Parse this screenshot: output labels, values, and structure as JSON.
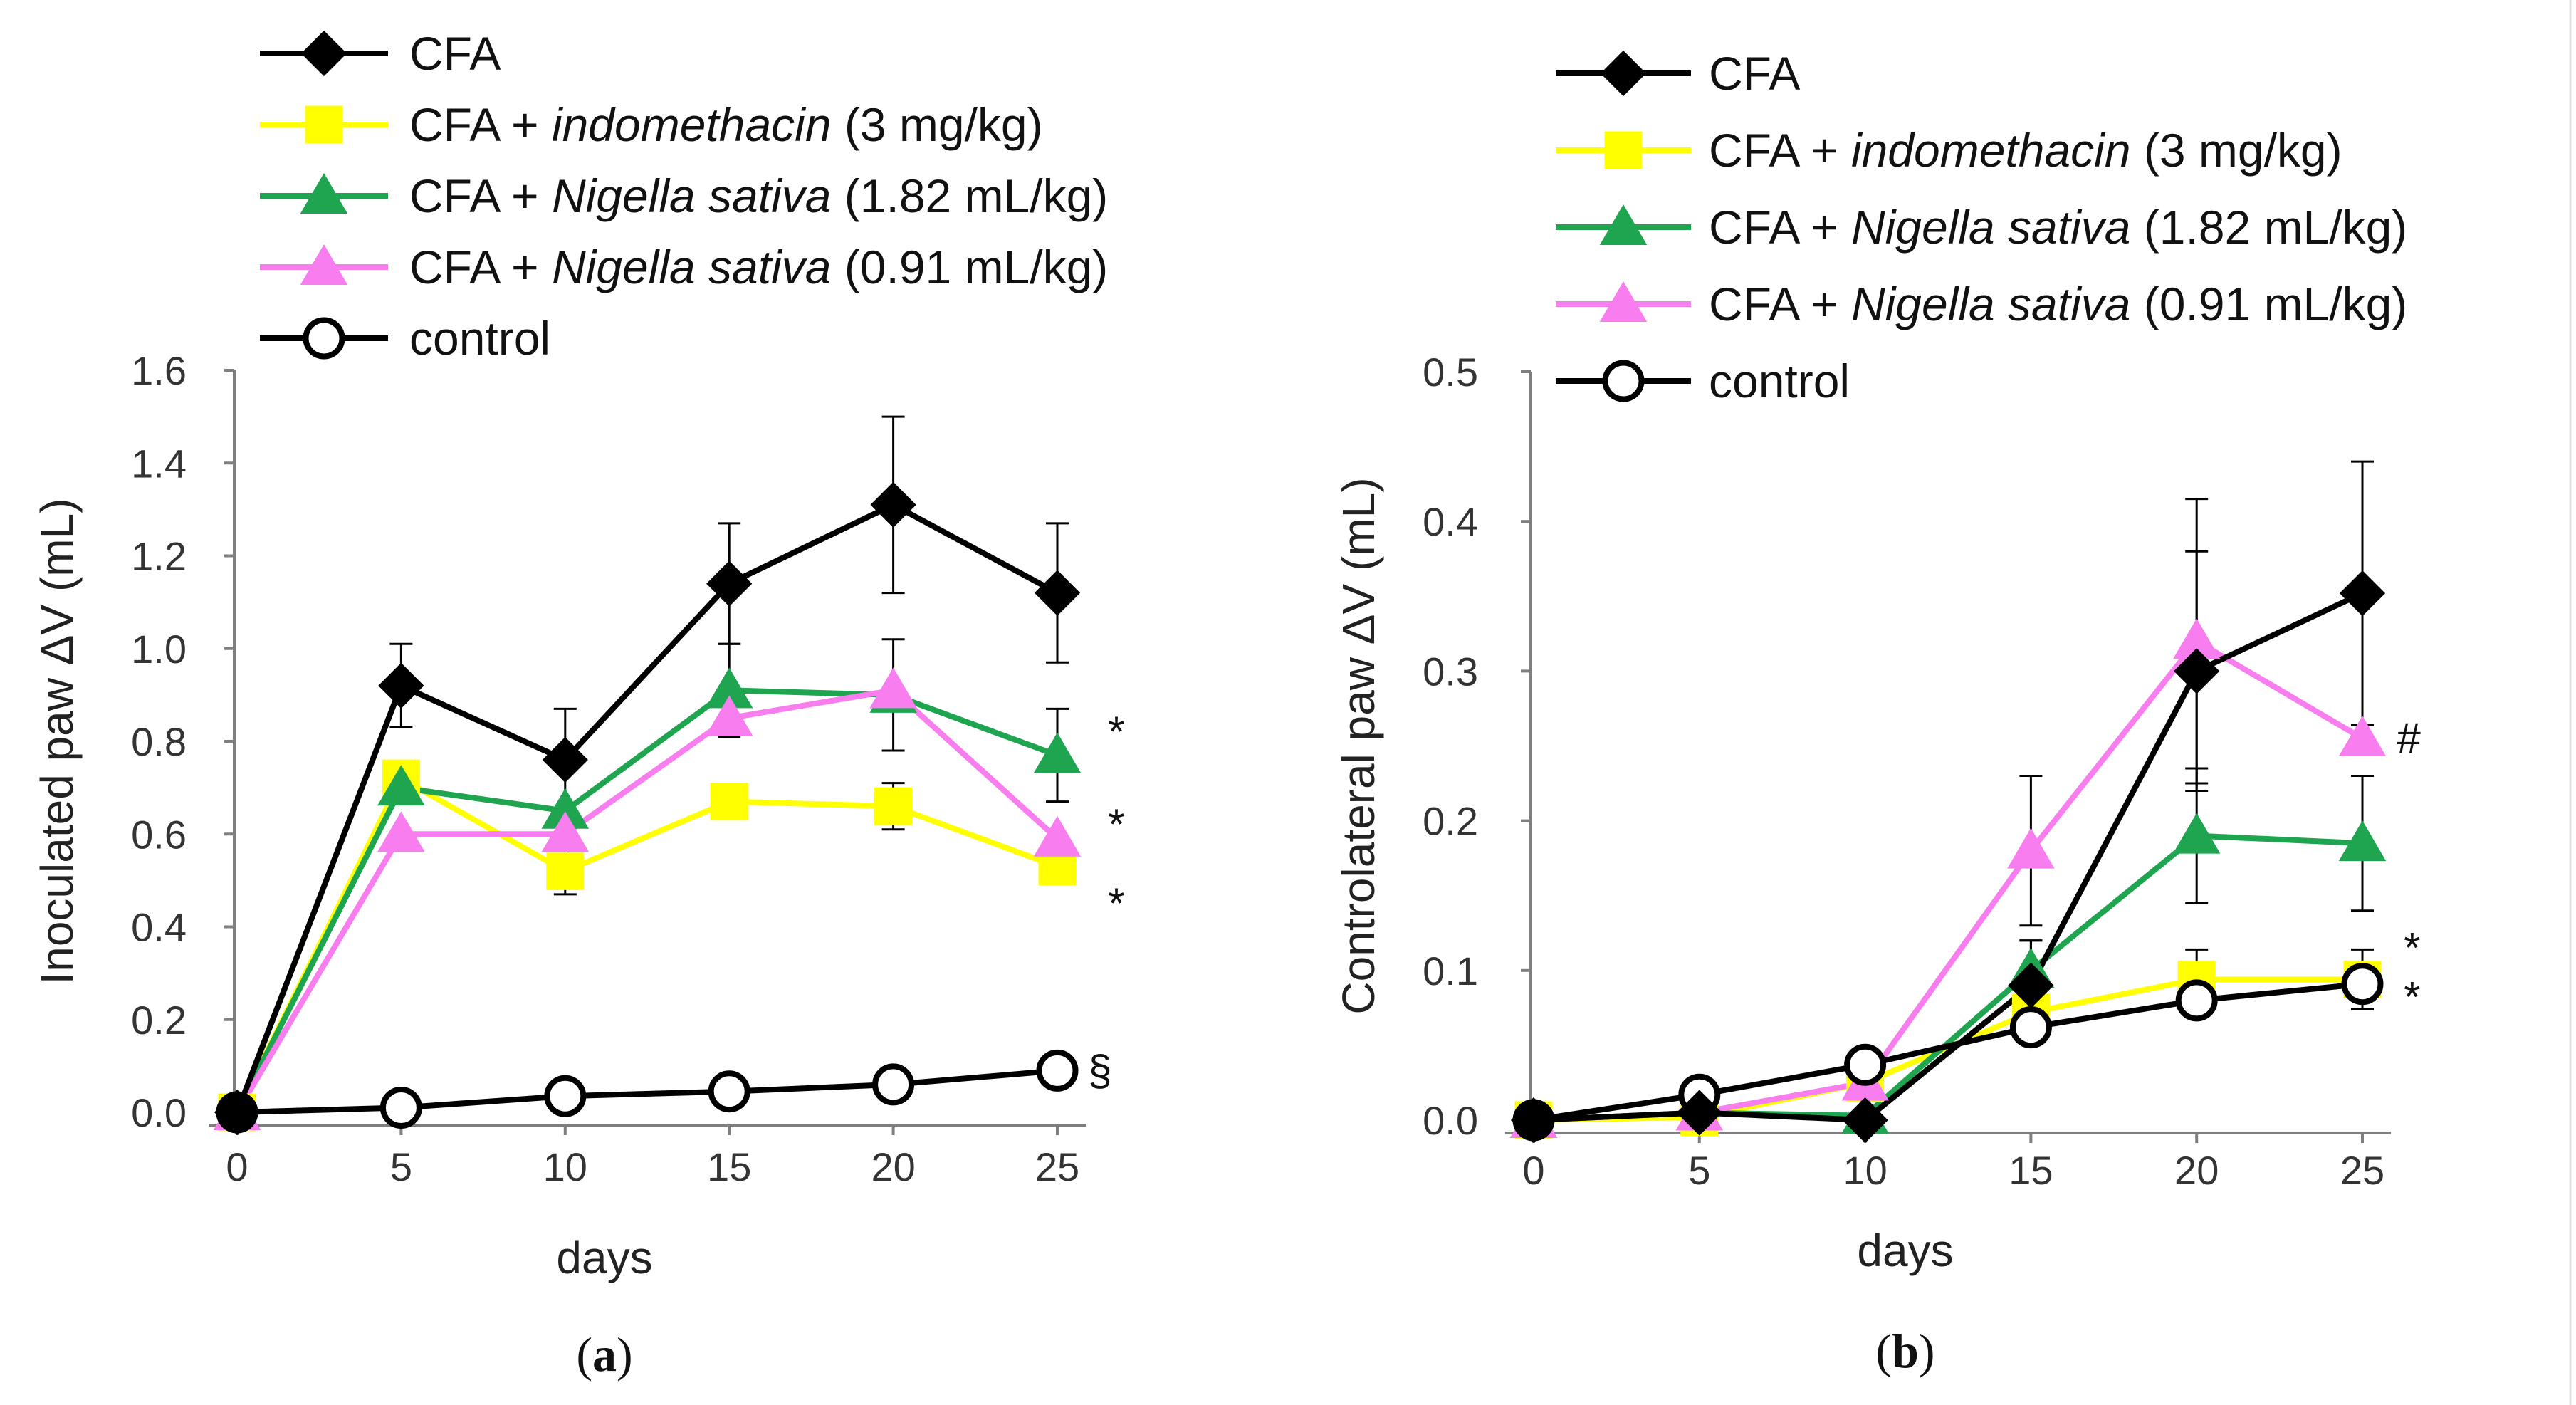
{
  "chart_data": [
    {
      "type": "line",
      "panel_label": "a",
      "xlabel": "days",
      "ylabel": "Inoculated paw ΔV (mL)",
      "x": [
        0,
        5,
        10,
        15,
        20,
        25
      ],
      "xticks": [
        "0",
        "5",
        "10",
        "15",
        "20",
        "25"
      ],
      "ylim": [
        0,
        1.6
      ],
      "yticks": [
        "0.0",
        "0.2",
        "0.4",
        "0.6",
        "0.8",
        "1.0",
        "1.2",
        "1.4",
        "1.6"
      ],
      "legend": [
        {
          "prefix": "CFA",
          "italic": "",
          "suffix": ""
        },
        {
          "prefix": "CFA + ",
          "italic": "indomethacin",
          "suffix": " (3 mg/kg)"
        },
        {
          "prefix": "CFA + ",
          "italic": "Nigella sativa",
          "suffix": " (1.82 mL/kg)"
        },
        {
          "prefix": "CFA + ",
          "italic": "Nigella sativa",
          "suffix": " (0.91 mL/kg)"
        },
        {
          "prefix": "control",
          "italic": "",
          "suffix": ""
        }
      ],
      "series": [
        {
          "name": "CFA",
          "color": "#000000",
          "marker": "diamond",
          "values": [
            0,
            0.92,
            0.76,
            1.14,
            1.31,
            1.12
          ],
          "errors": [
            0,
            0.09,
            0.11,
            0.13,
            0.19,
            0.15
          ]
        },
        {
          "name": "CFA + indomethacin (3 mg/kg)",
          "color": "#ffff00",
          "marker": "square",
          "values": [
            0,
            0.72,
            0.52,
            0.67,
            0.66,
            0.53
          ],
          "errors": [
            0,
            0,
            0.05,
            0,
            0.05,
            0
          ]
        },
        {
          "name": "CFA + Nigella sativa (1.82 mL/kg)",
          "color": "#1fa550",
          "marker": "triangle",
          "values": [
            0,
            0.7,
            0.65,
            0.91,
            0.9,
            0.77
          ],
          "errors": [
            0,
            0,
            0,
            0.1,
            0.12,
            0.1
          ]
        },
        {
          "name": "CFA + Nigella sativa (0.91 mL/kg)",
          "color": "#f87ef0",
          "marker": "triangle",
          "values": [
            0,
            0.6,
            0.6,
            0.85,
            0.91,
            0.59
          ],
          "errors": [
            0,
            0,
            0,
            0,
            0,
            0
          ]
        },
        {
          "name": "control",
          "color": "#000000",
          "marker": "circle",
          "values": [
            0,
            0.01,
            0.035,
            0.045,
            0.06,
            0.09
          ],
          "errors": [
            0,
            0,
            0,
            0,
            0,
            0
          ]
        }
      ],
      "annotations": [
        {
          "text": "*",
          "x": 26.8,
          "y": 0.82
        },
        {
          "text": "*",
          "x": 26.8,
          "y": 0.62
        },
        {
          "text": "*",
          "x": 26.8,
          "y": 0.45
        },
        {
          "text": "§",
          "x": 26.3,
          "y": 0.09
        }
      ]
    },
    {
      "type": "line",
      "panel_label": "b",
      "xlabel": "days",
      "ylabel": "Controlateral  paw ΔV (mL)",
      "x": [
        0,
        5,
        10,
        15,
        20,
        25
      ],
      "xticks": [
        "0",
        "5",
        "10",
        "15",
        "20",
        "25"
      ],
      "ylim": [
        0,
        0.5
      ],
      "yticks": [
        "0.0",
        "0.1",
        "0.2",
        "0.3",
        "0.4",
        "0.5"
      ],
      "legend": [
        {
          "prefix": "CFA",
          "italic": "",
          "suffix": ""
        },
        {
          "prefix": "CFA + ",
          "italic": "indomethacin",
          "suffix": " (3 mg/kg)"
        },
        {
          "prefix": "CFA + ",
          "italic": "Nigella sativa",
          "suffix": " (1.82 mL/kg)"
        },
        {
          "prefix": "CFA + ",
          "italic": "Nigella sativa",
          "suffix": " (0.91 mL/kg)"
        },
        {
          "prefix": "control",
          "italic": "",
          "suffix": ""
        }
      ],
      "series": [
        {
          "name": "CFA",
          "color": "#000000",
          "marker": "diamond",
          "values": [
            0,
            0.005,
            0,
            0.09,
            0.3,
            0.352
          ],
          "errors": [
            0,
            0,
            0,
            0.03,
            0.08,
            0.088
          ]
        },
        {
          "name": "CFA + indomethacin (3 mg/kg)",
          "color": "#ffff00",
          "marker": "square",
          "values": [
            0,
            0.002,
            0.025,
            0.072,
            0.094,
            0.094
          ],
          "errors": [
            0,
            0,
            0,
            0,
            0.02,
            0.02
          ]
        },
        {
          "name": "CFA + Nigella sativa (1.82 mL/kg)",
          "color": "#1fa550",
          "marker": "triangle",
          "values": [
            0,
            0.005,
            0.003,
            0.1,
            0.19,
            0.185
          ],
          "errors": [
            0,
            0,
            0,
            0.02,
            0.045,
            0.045
          ]
        },
        {
          "name": "CFA + Nigella sativa (0.91 mL/kg)",
          "color": "#f87ef0",
          "marker": "triangle",
          "values": [
            0,
            0.005,
            0.025,
            0.18,
            0.32,
            0.255
          ],
          "errors": [
            0,
            0,
            0,
            0.05,
            0.095,
            0
          ]
        },
        {
          "name": "control",
          "color": "#000000",
          "marker": "circle",
          "values": [
            0,
            0.017,
            0.037,
            0.062,
            0.08,
            0.091
          ],
          "errors": [
            0,
            0,
            0,
            0,
            0,
            0
          ]
        }
      ],
      "annotations": [
        {
          "text": "#",
          "x": 26.4,
          "y": 0.255
        },
        {
          "text": "*",
          "x": 26.5,
          "y": 0.115
        },
        {
          "text": "*",
          "x": 26.5,
          "y": 0.082
        }
      ]
    }
  ]
}
